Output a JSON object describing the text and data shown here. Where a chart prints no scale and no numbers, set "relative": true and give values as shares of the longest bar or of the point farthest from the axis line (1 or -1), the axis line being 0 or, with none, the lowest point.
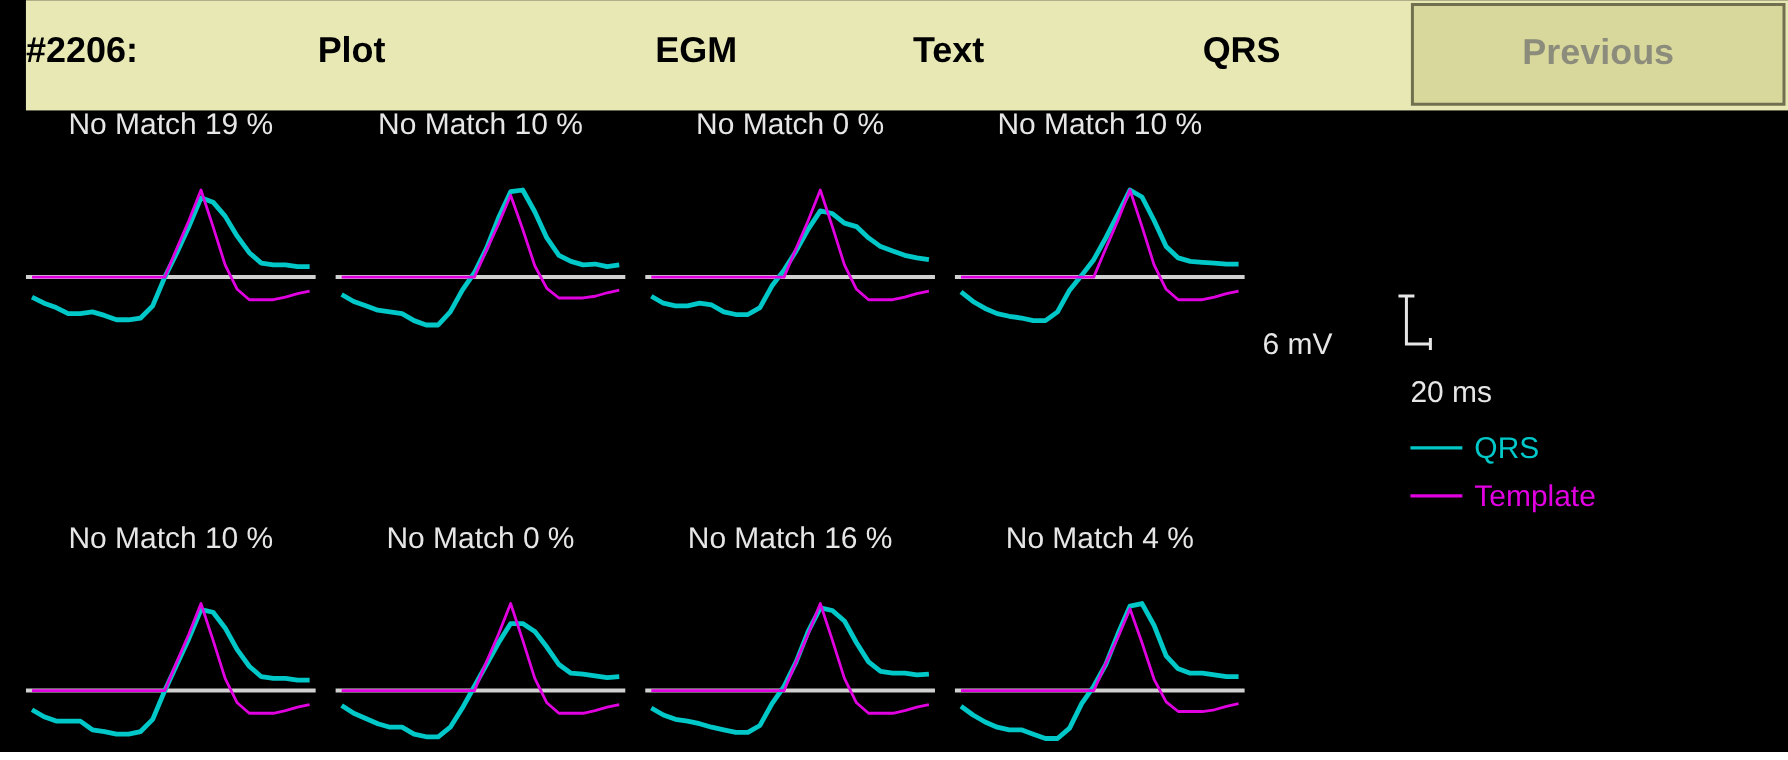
{
  "chart_data": [
    {
      "type": "other",
      "annotations": [
        "#2206:",
        "Plot",
        "EGM",
        "Text",
        "QRS",
        "Previous"
      ]
    },
    {
      "type": "line",
      "title": "No Match 19 %",
      "relative": true,
      "legend": "right",
      "annotations": [
        "6 mV",
        "20 ms"
      ],
      "categories": [
        null,
        null,
        null,
        null,
        null,
        null,
        null,
        null,
        null,
        null,
        null,
        null,
        null,
        null,
        null,
        null,
        null,
        null,
        null,
        null,
        null,
        null,
        null,
        null
      ],
      "series": [
        {
          "name": "QRS",
          "color": "#00c8c8",
          "values": [
            -0.23,
            -0.3,
            -0.35,
            -0.42,
            -0.42,
            -0.4,
            -0.44,
            -0.49,
            -0.49,
            -0.47,
            -0.33,
            0,
            0.28,
            0.58,
            0.91,
            0.86,
            0.7,
            0.47,
            0.28,
            0.16,
            0.14,
            0.14,
            0.12,
            0.12
          ]
        },
        {
          "name": "Template",
          "color": "#e000e0",
          "values": [
            0,
            0,
            0,
            0,
            0,
            0,
            0,
            0,
            0,
            0,
            0,
            0,
            0.33,
            0.65,
            1,
            0.58,
            0.14,
            -0.14,
            -0.26,
            -0.26,
            -0.26,
            -0.23,
            -0.19,
            -0.16
          ]
        }
      ]
    },
    {
      "type": "line",
      "title": "No Match 10 %",
      "relative": true,
      "categories": [
        null,
        null,
        null,
        null,
        null,
        null,
        null,
        null,
        null,
        null,
        null,
        null,
        null,
        null,
        null,
        null,
        null,
        null,
        null,
        null,
        null,
        null,
        null,
        null
      ],
      "series": [
        {
          "color": "#00c8c8",
          "values": [
            -0.2,
            -0.28,
            -0.33,
            -0.38,
            -0.4,
            -0.42,
            -0.5,
            -0.55,
            -0.55,
            -0.4,
            -0.15,
            0.05,
            0.33,
            0.68,
            0.98,
            1,
            0.75,
            0.45,
            0.25,
            0.18,
            0.14,
            0.15,
            0.12,
            0.14
          ]
        },
        {
          "color": "#e000e0",
          "values": [
            0,
            0,
            0,
            0,
            0,
            0,
            0,
            0,
            0,
            0,
            0,
            0,
            0.31,
            0.61,
            0.94,
            0.55,
            0.13,
            -0.13,
            -0.24,
            -0.24,
            -0.24,
            -0.22,
            -0.18,
            -0.15
          ]
        }
      ]
    },
    {
      "type": "line",
      "title": "No Match 0 %",
      "relative": true,
      "categories": [
        null,
        null,
        null,
        null,
        null,
        null,
        null,
        null,
        null,
        null,
        null,
        null,
        null,
        null,
        null,
        null,
        null,
        null,
        null,
        null,
        null,
        null,
        null,
        null
      ],
      "series": [
        {
          "color": "#00c8c8",
          "values": [
            -0.22,
            -0.3,
            -0.33,
            -0.33,
            -0.3,
            -0.32,
            -0.4,
            -0.43,
            -0.43,
            -0.35,
            -0.1,
            0.08,
            0.3,
            0.55,
            0.76,
            0.73,
            0.62,
            0.58,
            0.45,
            0.35,
            0.3,
            0.25,
            0.22,
            0.2
          ]
        },
        {
          "color": "#e000e0",
          "values": [
            0,
            0,
            0,
            0,
            0,
            0,
            0,
            0,
            0,
            0,
            0,
            0,
            0.33,
            0.65,
            1,
            0.58,
            0.14,
            -0.14,
            -0.26,
            -0.26,
            -0.26,
            -0.23,
            -0.19,
            -0.16
          ]
        }
      ]
    },
    {
      "type": "line",
      "title": "No Match 10 %",
      "relative": true,
      "categories": [
        null,
        null,
        null,
        null,
        null,
        null,
        null,
        null,
        null,
        null,
        null,
        null,
        null,
        null,
        null,
        null,
        null,
        null,
        null,
        null,
        null,
        null,
        null,
        null
      ],
      "series": [
        {
          "color": "#00c8c8",
          "values": [
            -0.17,
            -0.28,
            -0.36,
            -0.42,
            -0.45,
            -0.47,
            -0.5,
            -0.5,
            -0.4,
            -0.15,
            0.02,
            0.2,
            0.45,
            0.72,
            1,
            0.92,
            0.65,
            0.35,
            0.22,
            0.18,
            0.17,
            0.16,
            0.15,
            0.15
          ]
        },
        {
          "color": "#e000e0",
          "values": [
            0,
            0,
            0,
            0,
            0,
            0,
            0,
            0,
            0,
            0,
            0,
            0,
            0.33,
            0.65,
            1,
            0.58,
            0.14,
            -0.14,
            -0.26,
            -0.26,
            -0.26,
            -0.23,
            -0.19,
            -0.16
          ]
        }
      ]
    },
    {
      "type": "line",
      "title": "No Match 10 %",
      "relative": true,
      "categories": [
        null,
        null,
        null,
        null,
        null,
        null,
        null,
        null,
        null,
        null,
        null,
        null,
        null,
        null,
        null,
        null,
        null,
        null,
        null,
        null,
        null,
        null,
        null,
        null
      ],
      "series": [
        {
          "color": "#00c8c8",
          "values": [
            -0.22,
            -0.3,
            -0.35,
            -0.35,
            -0.35,
            -0.45,
            -0.47,
            -0.5,
            -0.5,
            -0.47,
            -0.33,
            0,
            0.3,
            0.6,
            0.93,
            0.9,
            0.72,
            0.47,
            0.28,
            0.16,
            0.14,
            0.14,
            0.12,
            0.12
          ]
        },
        {
          "color": "#e000e0",
          "values": [
            0,
            0,
            0,
            0,
            0,
            0,
            0,
            0,
            0,
            0,
            0,
            0,
            0.33,
            0.65,
            1,
            0.58,
            0.14,
            -0.14,
            -0.26,
            -0.26,
            -0.26,
            -0.23,
            -0.19,
            -0.16
          ]
        }
      ]
    },
    {
      "type": "line",
      "title": "No Match 0 %",
      "relative": true,
      "categories": [
        null,
        null,
        null,
        null,
        null,
        null,
        null,
        null,
        null,
        null,
        null,
        null,
        null,
        null,
        null,
        null,
        null,
        null,
        null,
        null,
        null,
        null,
        null,
        null
      ],
      "series": [
        {
          "color": "#00c8c8",
          "values": [
            -0.17,
            -0.26,
            -0.32,
            -0.38,
            -0.42,
            -0.42,
            -0.5,
            -0.53,
            -0.53,
            -0.42,
            -0.2,
            0.05,
            0.3,
            0.55,
            0.77,
            0.77,
            0.68,
            0.5,
            0.3,
            0.2,
            0.19,
            0.17,
            0.15,
            0.16
          ]
        },
        {
          "color": "#e000e0",
          "values": [
            0,
            0,
            0,
            0,
            0,
            0,
            0,
            0,
            0,
            0,
            0,
            0,
            0.33,
            0.65,
            1,
            0.58,
            0.14,
            -0.14,
            -0.26,
            -0.26,
            -0.26,
            -0.23,
            -0.19,
            -0.16
          ]
        }
      ]
    },
    {
      "type": "line",
      "title": "No Match 16 %",
      "relative": true,
      "categories": [
        null,
        null,
        null,
        null,
        null,
        null,
        null,
        null,
        null,
        null,
        null,
        null,
        null,
        null,
        null,
        null,
        null,
        null,
        null,
        null,
        null,
        null,
        null,
        null
      ],
      "series": [
        {
          "color": "#00c8c8",
          "values": [
            -0.2,
            -0.28,
            -0.33,
            -0.35,
            -0.38,
            -0.42,
            -0.45,
            -0.48,
            -0.48,
            -0.4,
            -0.15,
            0.05,
            0.33,
            0.68,
            0.95,
            0.92,
            0.8,
            0.55,
            0.33,
            0.22,
            0.2,
            0.2,
            0.18,
            0.19
          ]
        },
        {
          "color": "#e000e0",
          "values": [
            0,
            0,
            0,
            0,
            0,
            0,
            0,
            0,
            0,
            0,
            0,
            0,
            0.33,
            0.65,
            1,
            0.58,
            0.14,
            -0.14,
            -0.26,
            -0.26,
            -0.26,
            -0.23,
            -0.19,
            -0.16
          ]
        }
      ]
    },
    {
      "type": "line",
      "title": "No Match 4 %",
      "relative": true,
      "categories": [
        null,
        null,
        null,
        null,
        null,
        null,
        null,
        null,
        null,
        null,
        null,
        null,
        null,
        null,
        null,
        null,
        null,
        null,
        null,
        null,
        null,
        null,
        null,
        null
      ],
      "series": [
        {
          "color": "#00c8c8",
          "values": [
            -0.18,
            -0.28,
            -0.36,
            -0.42,
            -0.45,
            -0.45,
            -0.5,
            -0.55,
            -0.55,
            -0.43,
            -0.15,
            0.05,
            0.3,
            0.65,
            0.97,
            1,
            0.75,
            0.4,
            0.25,
            0.2,
            0.2,
            0.18,
            0.16,
            0.16
          ]
        },
        {
          "color": "#e000e0",
          "values": [
            0,
            0,
            0,
            0,
            0,
            0,
            0,
            0,
            0,
            0,
            0,
            0,
            0.31,
            0.61,
            0.94,
            0.55,
            0.13,
            -0.13,
            -0.24,
            -0.24,
            -0.24,
            -0.22,
            -0.18,
            -0.15
          ]
        }
      ]
    }
  ]
}
